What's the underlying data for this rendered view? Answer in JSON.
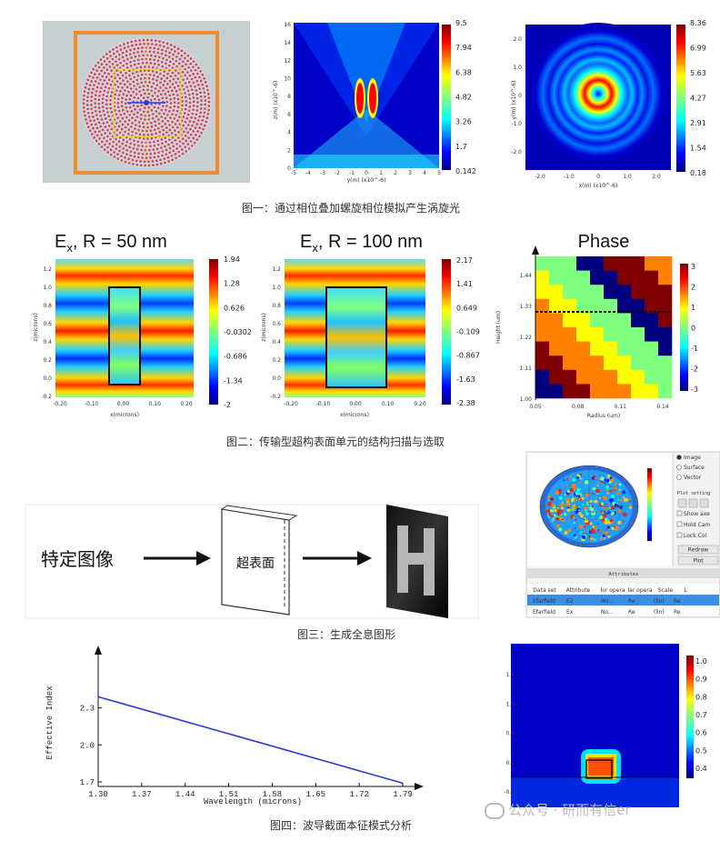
{
  "figure1": {
    "caption": "图一：通过相位叠加螺旋相位模拟产生涡旋光",
    "panel_b": {
      "ylabel": "z(m) (x10^-6)",
      "xlabel": "y(m) (x10^-6)",
      "yticks": [
        "16",
        "14",
        "12",
        "10",
        "8",
        "6",
        "4",
        "2",
        "0"
      ],
      "xticks": [
        "-5",
        "-4",
        "-3",
        "-2",
        "-1",
        "0",
        "1",
        "2",
        "3",
        "4",
        "5"
      ],
      "colorbar": [
        "9.5",
        "7.94",
        "6.38",
        "4.82",
        "3.26",
        "1.7",
        "0.142"
      ]
    },
    "panel_c": {
      "ylabel": "y(m) (x10^-6)",
      "xlabel": "x(m) (x10^-6)",
      "yticks": [
        "2.0",
        "1.0",
        "0",
        "-1.0",
        "-2.0"
      ],
      "xticks": [
        "-2.0",
        "-1.0",
        "0",
        "1.0",
        "2.0"
      ],
      "colorbar": [
        "8.36",
        "6.99",
        "5.63",
        "4.27",
        "2.91",
        "1.54",
        "0.18"
      ]
    }
  },
  "figure2": {
    "caption": "图二：传输型超构表面单元的结构扫描与选取",
    "panel_a": {
      "title_main": "E",
      "title_sub": "x",
      "title_rest": ", R = 50 nm",
      "ylabel": "z(microns)",
      "xlabel": "x(microns)",
      "yticks": [
        "1.2",
        "1.0",
        "0.8",
        "0.6",
        "0.4",
        "0.2",
        "0.0",
        "-0.2"
      ],
      "xticks": [
        "-0.20",
        "-0.10",
        "0.00",
        "0.10",
        "0.20"
      ],
      "colorbar": [
        "1.94",
        "1.28",
        "0.626",
        "-0.0302",
        "-0.686",
        "-1.34",
        "-2"
      ]
    },
    "panel_b": {
      "title_main": "E",
      "title_sub": "x",
      "title_rest": ", R = 100 nm",
      "ylabel": "z(microns)",
      "xlabel": "x(microns)",
      "yticks": [
        "1.2",
        "1.0",
        "0.8",
        "0.6",
        "0.4",
        "0.2",
        "0.0",
        "-0.2"
      ],
      "xticks": [
        "-0.20",
        "-0.10",
        "0.00",
        "0.10",
        "0.20"
      ],
      "colorbar": [
        "2.17",
        "1.41",
        "0.649",
        "-0.109",
        "-0.867",
        "-1.63",
        "-2.38"
      ]
    },
    "panel_c": {
      "title": "Phase",
      "ylabel": "Height (um)",
      "xlabel": "Radius (um)",
      "yticks": [
        "1.44",
        "1.33",
        "1.22",
        "1.11",
        "1.00"
      ],
      "xticks": [
        "0.05",
        "0.08",
        "0.11",
        "0.14"
      ],
      "colorbar": [
        "3",
        "2",
        "1",
        "0",
        "-1",
        "-2",
        "-3"
      ]
    }
  },
  "figure3": {
    "caption": "图三：生成全息图形",
    "input_label": "特定图像",
    "metasurface_label": "超表面",
    "output_letter": "H",
    "screenshot": {
      "radio_options": [
        "Image",
        "Surface",
        "Vector"
      ],
      "plot_settings": "Plot setting",
      "checkboxes": [
        "Show axe",
        "Hold Cam",
        "Lock Col"
      ],
      "buttons": [
        "Redraw",
        "Plot"
      ],
      "attributes_header": "Attributes",
      "table_headers": [
        "Data set",
        "Attribute",
        "lor opera",
        "lar opera",
        "Scale",
        "L"
      ],
      "rows": [
        [
          "Efarfield",
          "E2",
          "No...",
          "Re",
          "(lin)",
          "Re"
        ],
        [
          "Efarfield",
          "Ex",
          "No...",
          "Re",
          "(lin)",
          "Re"
        ]
      ]
    }
  },
  "figure4": {
    "caption": "图四：波导截面本征模式分析",
    "watermark": "公众号 · 研而有信er",
    "chart_data": {
      "type": "line",
      "title": "",
      "xlabel": "Wavelength (microns)",
      "ylabel": "Effective Index",
      "x": [
        1.3,
        1.79
      ],
      "values": [
        2.39,
        1.69
      ],
      "xlim": [
        1.3,
        1.79
      ],
      "ylim": [
        1.7,
        2.4
      ],
      "xticks": [
        "1.30",
        "1.37",
        "1.44",
        "1.51",
        "1.58",
        "1.65",
        "1.72",
        "1.79"
      ],
      "yticks": [
        "2.3",
        "2.0",
        "1.7"
      ],
      "series_color": "#2a3bd6"
    },
    "mode_panel": {
      "yticks": [
        "1.4",
        "1.0",
        "0.6",
        "0.2",
        "-0.2"
      ],
      "colorbar": [
        "1.0",
        "0.9",
        "0.8",
        "0.7",
        "0.6",
        "0.5",
        "0.4"
      ]
    }
  }
}
